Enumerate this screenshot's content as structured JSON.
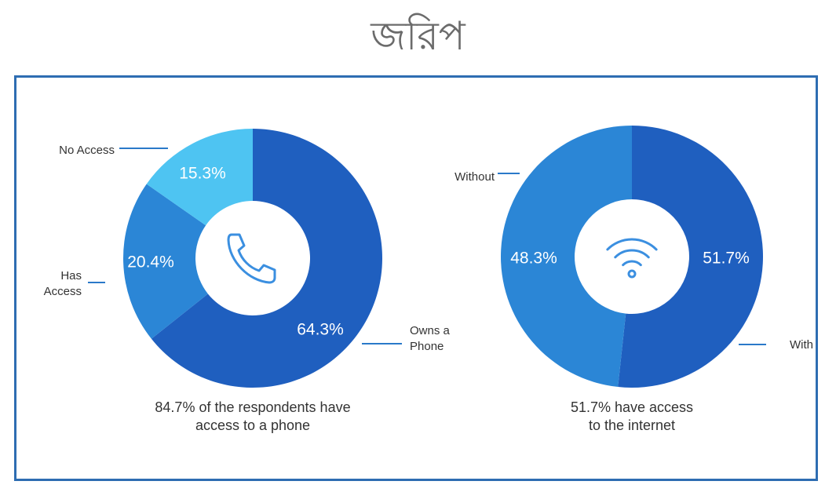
{
  "header": {
    "title": "জরিপ"
  },
  "colors": {
    "dark_blue": "#1f5fbf",
    "mid_blue": "#2b86d6",
    "light_blue": "#4ec4f2",
    "panel_border": "#2e6db2",
    "leader": "#2a79c9",
    "icon": "#3b8fe0"
  },
  "chart_data": [
    {
      "type": "pie",
      "icon": "phone-icon",
      "categories": [
        "Owns a Phone",
        "Has Access",
        "No Access"
      ],
      "values": [
        64.3,
        20.4,
        15.3
      ],
      "value_labels": [
        "64.3%",
        "20.4%",
        "15.3%"
      ],
      "caption": [
        "84.7% of the respondents have",
        "access to a phone"
      ]
    },
    {
      "type": "pie",
      "icon": "wifi-icon",
      "categories": [
        "With",
        "Without"
      ],
      "values": [
        51.7,
        48.3
      ],
      "value_labels": [
        "51.7%",
        "48.3%"
      ],
      "caption": [
        "51.7% have access",
        "to the internet"
      ]
    }
  ]
}
